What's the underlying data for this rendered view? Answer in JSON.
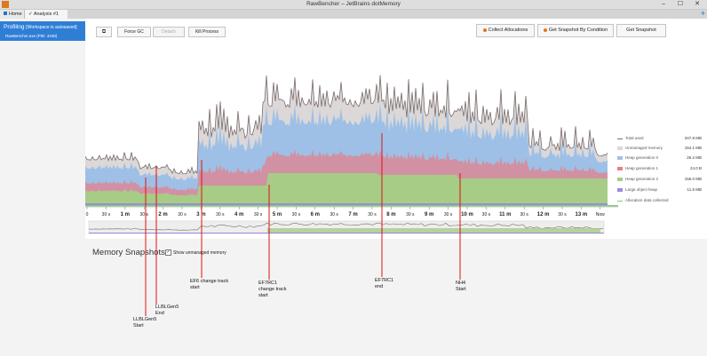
{
  "window": {
    "title": "RawBencher – JetBrains dotMemory",
    "minimize": "–",
    "maximize": "☐",
    "close": "✕"
  },
  "tabs": [
    {
      "label": "Home"
    },
    {
      "label": "✓ Analysis #1"
    }
  ],
  "add_tab": "+",
  "session": {
    "label": "Profiling",
    "status": "[Workspace is autosaved]",
    "process": "RawBencher.exe (PID: 4348)"
  },
  "toolbar": {
    "pin_icon": "⧉",
    "force_gc": "Force GC",
    "detach": "Detach",
    "kill_process": "Kill Process",
    "collect_allocations": "Collect Allocations",
    "snapshot_by_condition": "Get Snapshot By Condition",
    "get_snapshot": "Get Snapshot"
  },
  "legend": [
    {
      "name": "Total used",
      "value": "347.8",
      "unit": "MB",
      "color": "#7a6c6c"
    },
    {
      "name": "Unmanaged memory",
      "value": "154.1",
      "unit": "MB",
      "color": "#dcd8d8"
    },
    {
      "name": "Heap generation 0",
      "value": "26.2",
      "unit": "MB",
      "color": "#9ec0e6"
    },
    {
      "name": "Heap generation 1",
      "value": "24.0",
      "unit": "B",
      "color": "#e77e86"
    },
    {
      "name": "Heap generation 2",
      "value": "156.0",
      "unit": "MB",
      "color": "#a6cc86"
    },
    {
      "name": "Large object heap",
      "value": "11.6",
      "unit": "MB",
      "color": "#9d8ae0"
    },
    {
      "name": "Allocation data collected",
      "value": "",
      "unit": "",
      "color": "#7fcf6f"
    }
  ],
  "timeline_ticks": [
    "0",
    "30 s",
    "1 m",
    "30 s",
    "2 m",
    "30 s",
    "3 m",
    "30 s",
    "4 m",
    "30 s",
    "5 m",
    "30 s",
    "6 m",
    "30 s",
    "7 m",
    "30 s",
    "8 m",
    "30 s",
    "9 m",
    "30 s",
    "10 m",
    "30 s",
    "11 m",
    "30 s",
    "12 m",
    "30 s",
    "13 m",
    "Now"
  ],
  "snapshots": {
    "title": "Memory Snapshots",
    "show_unmanaged": "Show unmanaged memory"
  },
  "annotations": [
    {
      "label": "LLBLGen5\nStart"
    },
    {
      "label": "LLBLGen5\nEnd"
    },
    {
      "label": "EF6 change track\nstart"
    },
    {
      "label": "EF7RC1\nchange track\nstart"
    },
    {
      "label": "EF7RC1\nend"
    },
    {
      "label": "NH4\nStart"
    }
  ]
}
